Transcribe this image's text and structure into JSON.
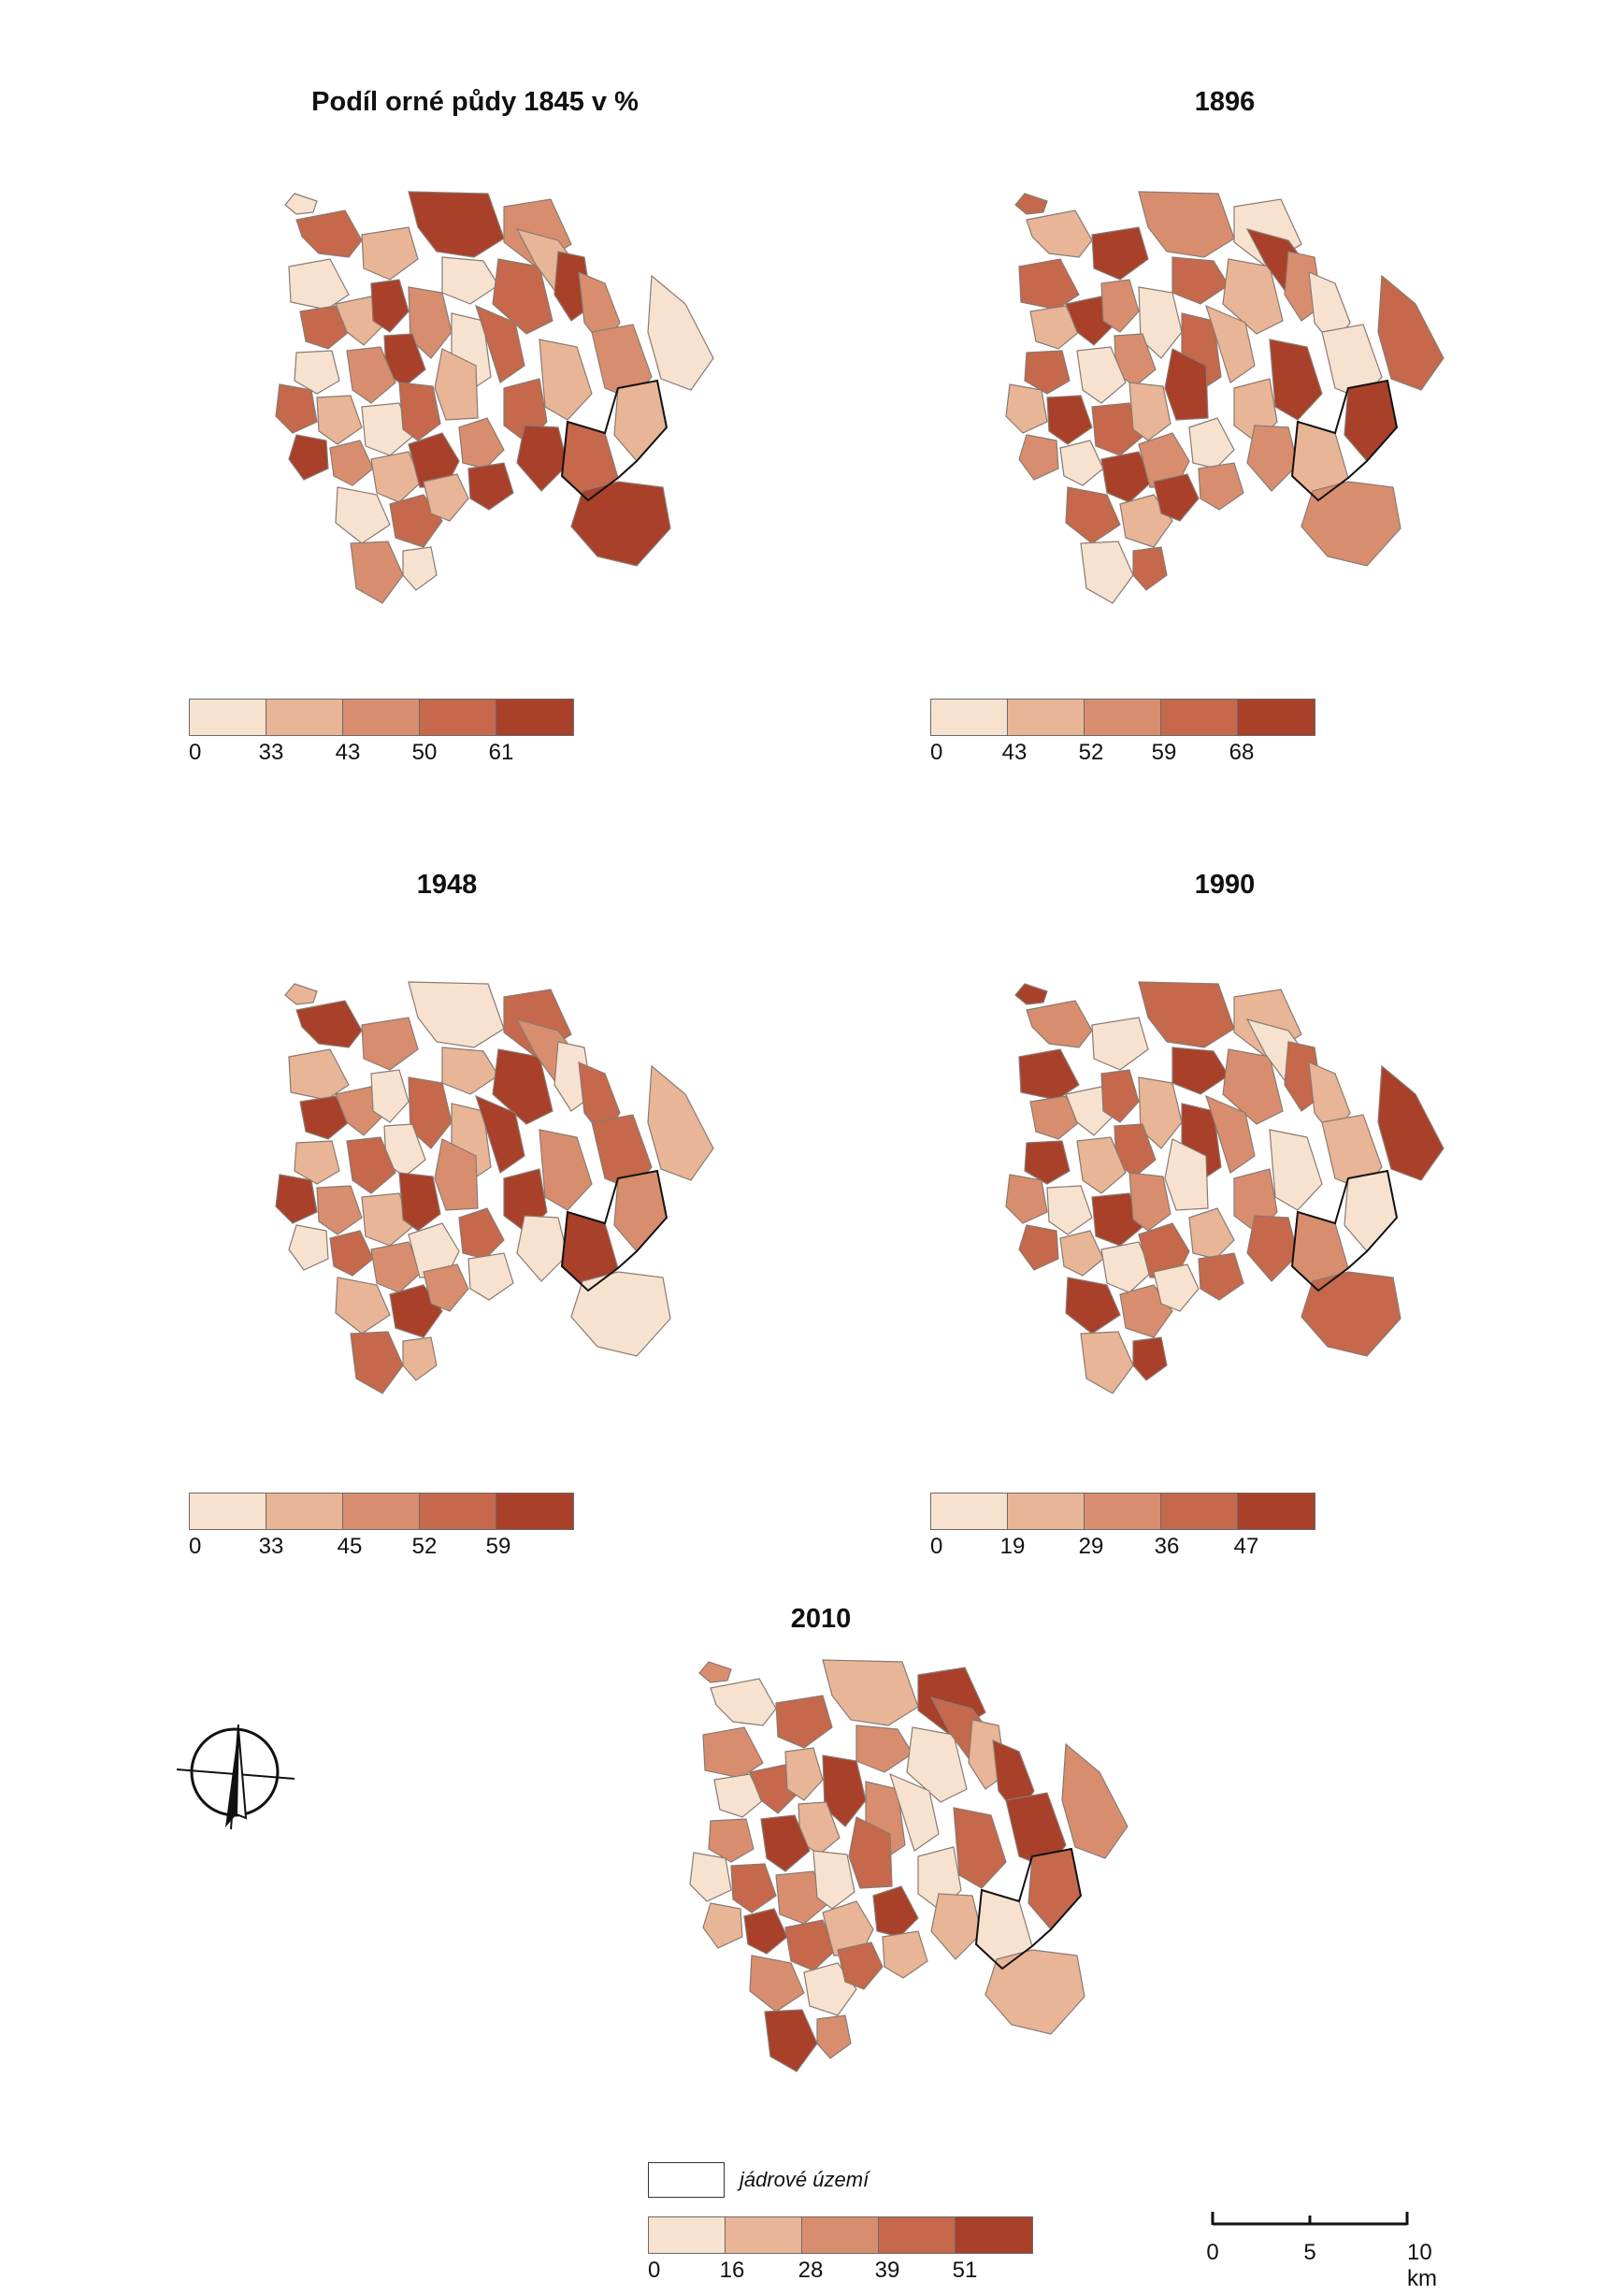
{
  "panels": [
    {
      "id": "p1845",
      "title": "Podíl orné půdy 1845 v %",
      "classes": [
        "0",
        "33",
        "43",
        "50",
        "61"
      ],
      "ramp": [
        "#f7e2cf",
        "#e8b596",
        "#d88e6e",
        "#c5684b",
        "#a8402a"
      ]
    },
    {
      "id": "p1896",
      "title": "1896",
      "classes": [
        "0",
        "43",
        "52",
        "59",
        "68"
      ],
      "ramp": [
        "#f7e2cf",
        "#e8b596",
        "#d88e6e",
        "#c5684b",
        "#a8402a"
      ]
    },
    {
      "id": "p1948",
      "title": "1948",
      "classes": [
        "0",
        "33",
        "45",
        "52",
        "59"
      ],
      "ramp": [
        "#f7e2cf",
        "#e8b596",
        "#d88e6e",
        "#c5684b",
        "#a8402a"
      ]
    },
    {
      "id": "p1990",
      "title": "1990",
      "classes": [
        "0",
        "19",
        "29",
        "36",
        "47"
      ],
      "ramp": [
        "#f7e2cf",
        "#e8b596",
        "#d88e6e",
        "#c5684b",
        "#a8402a"
      ]
    },
    {
      "id": "p2010",
      "title": "2010",
      "classes": [
        "0",
        "16",
        "28",
        "39",
        "51"
      ],
      "ramp": [
        "#f7e2cf",
        "#e8b596",
        "#d88e6e",
        "#c5684b",
        "#a8402a"
      ]
    }
  ],
  "core_legend": {
    "label": "jádrové území"
  },
  "scalebar": {
    "labels": [
      "0",
      "5",
      "10 km"
    ]
  },
  "icons": {
    "north_arrow": "north-arrow-icon"
  }
}
